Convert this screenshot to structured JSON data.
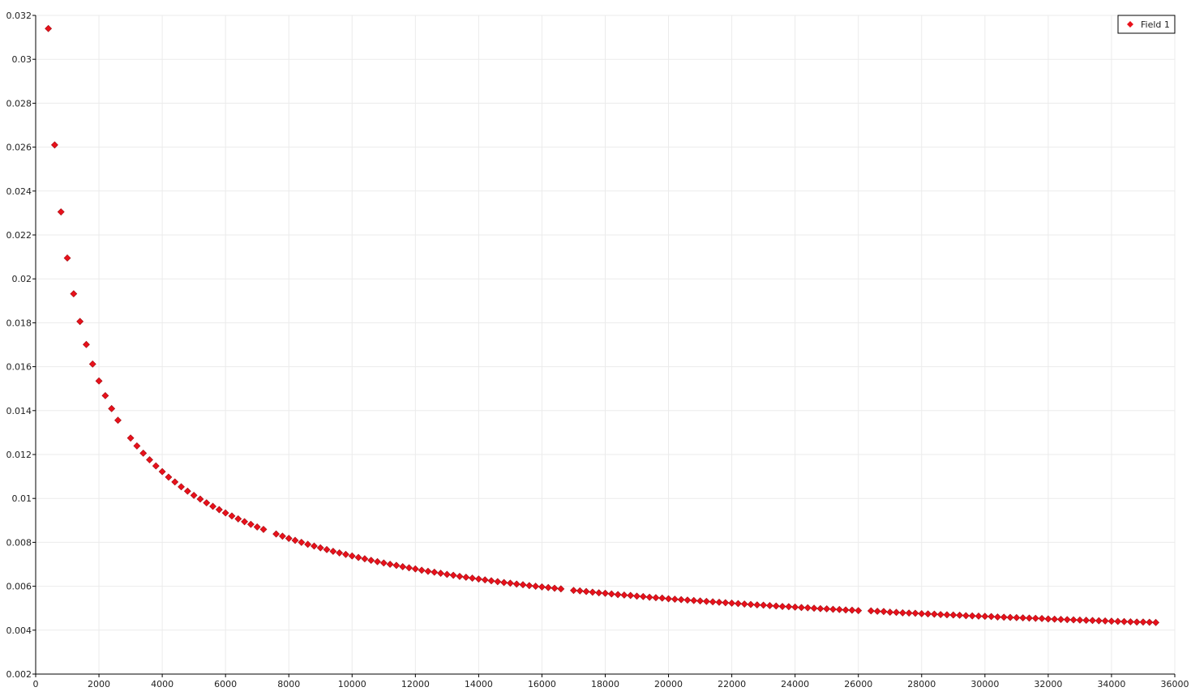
{
  "chart_data": {
    "type": "scatter",
    "title": "",
    "xlabel": "",
    "ylabel": "",
    "xlim": [
      0,
      36000
    ],
    "ylim": [
      0.002,
      0.032
    ],
    "x_ticks": [
      "0",
      "2000",
      "4000",
      "6000",
      "8000",
      "10000",
      "12000",
      "14000",
      "16000",
      "18000",
      "20000",
      "22000",
      "24000",
      "26000",
      "28000",
      "30000",
      "32000",
      "34000",
      "36000"
    ],
    "y_ticks": [
      "0.002",
      "0.004",
      "0.006",
      "0.008",
      "0.01",
      "0.012",
      "0.014",
      "0.016",
      "0.018",
      "0.02",
      "0.022",
      "0.024",
      "0.026",
      "0.028",
      "0.03",
      "0.032"
    ],
    "grid": true,
    "legend_position": "top-right",
    "series": [
      {
        "name": "Field 1",
        "color": "#e8111b",
        "marker": "diamond",
        "x": [
          400,
          600,
          800,
          1000,
          1200,
          1400,
          1600,
          1800,
          2000,
          2200,
          2400,
          2600,
          3000,
          3200,
          3400,
          3600,
          3800,
          4000,
          4200,
          4400,
          4600,
          4800,
          5000,
          5200,
          5400,
          5600,
          5800,
          6000,
          6200,
          6400,
          6600,
          6800,
          7000,
          7200,
          7600,
          7800,
          8000,
          8200,
          8400,
          8600,
          8800,
          9000,
          9200,
          9400,
          9600,
          9800,
          10000,
          10200,
          10400,
          10600,
          10800,
          11000,
          11200,
          11400,
          11600,
          11800,
          12000,
          12200,
          12400,
          12600,
          12800,
          13000,
          13200,
          13400,
          13600,
          13800,
          14000,
          14200,
          14400,
          14600,
          14800,
          15000,
          15200,
          15400,
          15600,
          15800,
          16000,
          16200,
          16400,
          16600,
          17000,
          17200,
          17400,
          17600,
          17800,
          18000,
          18200,
          18400,
          18600,
          18800,
          19000,
          19200,
          19400,
          19600,
          19800,
          20000,
          20200,
          20400,
          20600,
          20800,
          21000,
          21200,
          21400,
          21600,
          21800,
          22000,
          22200,
          22400,
          22600,
          22800,
          23000,
          23200,
          23400,
          23600,
          23800,
          24000,
          24200,
          24400,
          24600,
          24800,
          25000,
          25200,
          25400,
          25600,
          25800,
          26000,
          26400,
          26600,
          26800,
          27000,
          27200,
          27400,
          27600,
          27800,
          28000,
          28200,
          28400,
          28600,
          28800,
          29000,
          29200,
          29400,
          29600,
          29800,
          30000,
          30200,
          30400,
          30600,
          30800,
          31000,
          31200,
          31400,
          31600,
          31800,
          32000,
          32200,
          32400,
          32600,
          32800,
          33000,
          33200,
          33400,
          33600,
          33800,
          34000,
          34200,
          34400,
          34600,
          34800,
          35000,
          35200,
          35400
        ],
        "y": [
          0.0314,
          0.0261,
          0.02305,
          0.02095,
          0.01932,
          0.01806,
          0.01701,
          0.01612,
          0.01535,
          0.01468,
          0.01409,
          0.01356,
          0.01275,
          0.01239,
          0.01206,
          0.01176,
          0.01148,
          0.01122,
          0.01097,
          0.01075,
          0.01053,
          0.01033,
          0.01014,
          0.00997,
          0.0098,
          0.00964,
          0.00949,
          0.00934,
          0.0092,
          0.00907,
          0.00894,
          0.00882,
          0.0087,
          0.00859,
          0.00838,
          0.00828,
          0.00818,
          0.00809,
          0.008,
          0.00791,
          0.00783,
          0.00775,
          0.00767,
          0.00759,
          0.00752,
          0.00745,
          0.00738,
          0.00731,
          0.00725,
          0.00718,
          0.00712,
          0.00706,
          0.007,
          0.00695,
          0.00689,
          0.00684,
          0.00679,
          0.00673,
          0.00668,
          0.00664,
          0.00659,
          0.00654,
          0.0065,
          0.00645,
          0.00641,
          0.00637,
          0.00633,
          0.00629,
          0.00625,
          0.00621,
          0.00617,
          0.00614,
          0.0061,
          0.00607,
          0.00603,
          0.006,
          0.00597,
          0.00594,
          0.00591,
          0.00588,
          0.00581,
          0.00579,
          0.00576,
          0.00573,
          0.0057,
          0.00568,
          0.00565,
          0.00562,
          0.0056,
          0.00558,
          0.00555,
          0.00553,
          0.0055,
          0.00548,
          0.00546,
          0.00543,
          0.00541,
          0.00539,
          0.00537,
          0.00535,
          0.00533,
          0.00531,
          0.00529,
          0.00527,
          0.00525,
          0.00523,
          0.00521,
          0.00519,
          0.00517,
          0.00515,
          0.00514,
          0.00512,
          0.0051,
          0.00508,
          0.00507,
          0.00505,
          0.00503,
          0.00502,
          0.005,
          0.00498,
          0.00497,
          0.00495,
          0.00494,
          0.00492,
          0.00491,
          0.00489,
          0.00488,
          0.00486,
          0.00485,
          0.00482,
          0.00481,
          0.00479,
          0.00478,
          0.00477,
          0.00475,
          0.00474,
          0.00473,
          0.00471,
          0.0047,
          0.00469,
          0.00468,
          0.00466,
          0.00465,
          0.00464,
          0.00463,
          0.00462,
          0.0046,
          0.00459,
          0.00458,
          0.00457,
          0.00456,
          0.00455,
          0.00454,
          0.00453,
          0.00451,
          0.0045,
          0.00449,
          0.00448,
          0.00447,
          0.00446,
          0.00445,
          0.00444,
          0.00443,
          0.00442,
          0.00441,
          0.0044,
          0.00439,
          0.00438,
          0.00437,
          0.00437,
          0.00436,
          0.00435
        ]
      }
    ]
  }
}
